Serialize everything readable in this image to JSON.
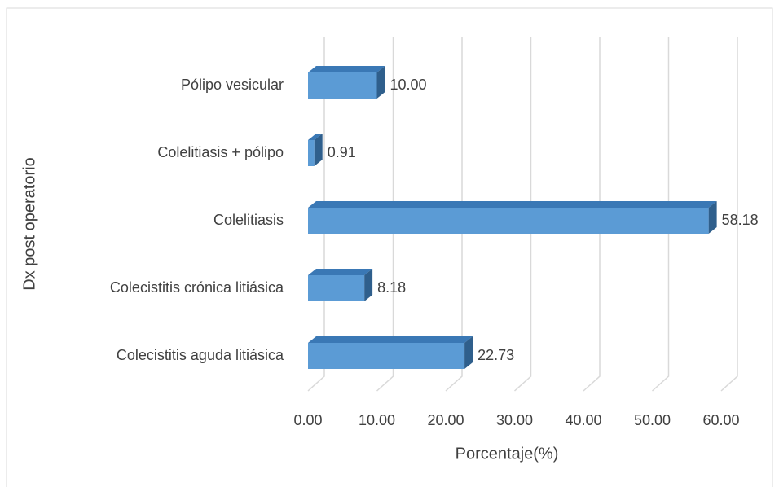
{
  "chart_data": {
    "type": "bar3d_horizontal",
    "categories": [
      "Pólipo vesicular",
      "Colelitiasis + pólipo",
      "Colelitiasis",
      "Colecistitis crónica litiásica",
      "Colecistitis aguda litiásica"
    ],
    "values": [
      10.0,
      0.91,
      58.18,
      8.18,
      22.73
    ],
    "value_labels": [
      "10.00",
      "0.91",
      "58.18",
      "8.18",
      "22.73"
    ],
    "color": "#5b9bd5",
    "xlim": [
      0,
      60
    ],
    "xticks": [
      {
        "value": 0,
        "label": "0.00"
      },
      {
        "value": 10,
        "label": "10.00"
      },
      {
        "value": 20,
        "label": "20.00"
      },
      {
        "value": 30,
        "label": "30.00"
      },
      {
        "value": 40,
        "label": "40.00"
      },
      {
        "value": 50,
        "label": "50.00"
      },
      {
        "value": 60,
        "label": "60.00"
      }
    ],
    "xlabel": "Porcentaje(%)",
    "ylabel": "Dx post operatorio",
    "grid": true
  }
}
